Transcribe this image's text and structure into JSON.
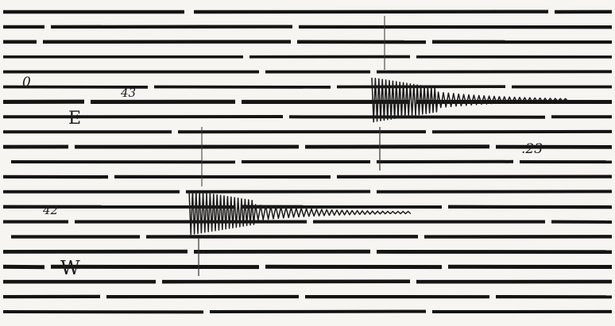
{
  "record": {
    "labels": {
      "zero": "0",
      "mark_43": "43",
      "component_e": "E",
      "mark_23": ".23",
      "mark_42": "42",
      "component_w": "W"
    },
    "ink_color": "#141414",
    "paper_color": "#f7f5f1"
  }
}
